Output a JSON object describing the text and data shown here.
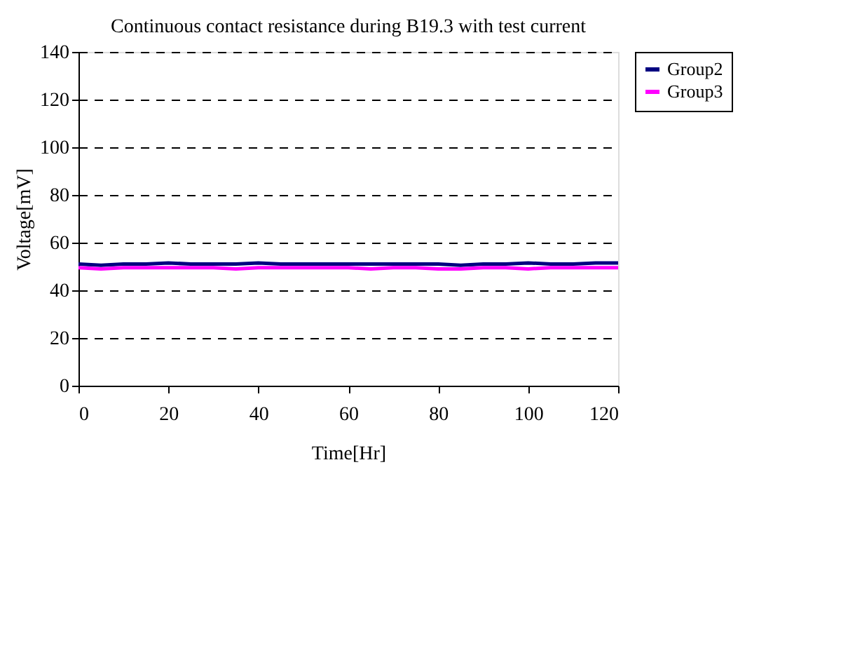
{
  "chart_data": {
    "type": "line",
    "title": "Continuous contact resistance during B19.3 with test current",
    "xlabel": "Time[Hr]",
    "ylabel": "Voltage[mV]",
    "x": [
      0,
      5,
      10,
      15,
      20,
      25,
      30,
      35,
      40,
      45,
      50,
      55,
      60,
      65,
      70,
      75,
      80,
      85,
      90,
      95,
      100,
      105,
      110,
      115,
      120
    ],
    "series": [
      {
        "name": "Group2",
        "color": "#000080",
        "values": [
          51,
          50.5,
          51,
          51,
          51.5,
          51,
          51,
          51,
          51.5,
          51,
          51,
          51,
          51,
          51,
          51,
          51,
          51,
          50.5,
          51,
          51,
          51.5,
          51,
          51,
          51.5,
          51.5
        ]
      },
      {
        "name": "Group3",
        "color": "#ff00ff",
        "values": [
          49.5,
          49,
          49.5,
          49.5,
          49.5,
          49.5,
          49.5,
          49,
          49.5,
          49.5,
          49.5,
          49.5,
          49.5,
          49,
          49.5,
          49.5,
          49,
          49,
          49.5,
          49.5,
          49,
          49.5,
          49.5,
          49.5,
          49.5
        ]
      }
    ],
    "xlim": [
      0,
      120
    ],
    "xticks": [
      0,
      20,
      40,
      60,
      80,
      100,
      120
    ],
    "ylim": [
      0,
      140
    ],
    "yticks": [
      0,
      20,
      40,
      60,
      80,
      100,
      120,
      140
    ],
    "grid": "y",
    "legend": "right",
    "line_style": "solid",
    "marker": "none"
  }
}
